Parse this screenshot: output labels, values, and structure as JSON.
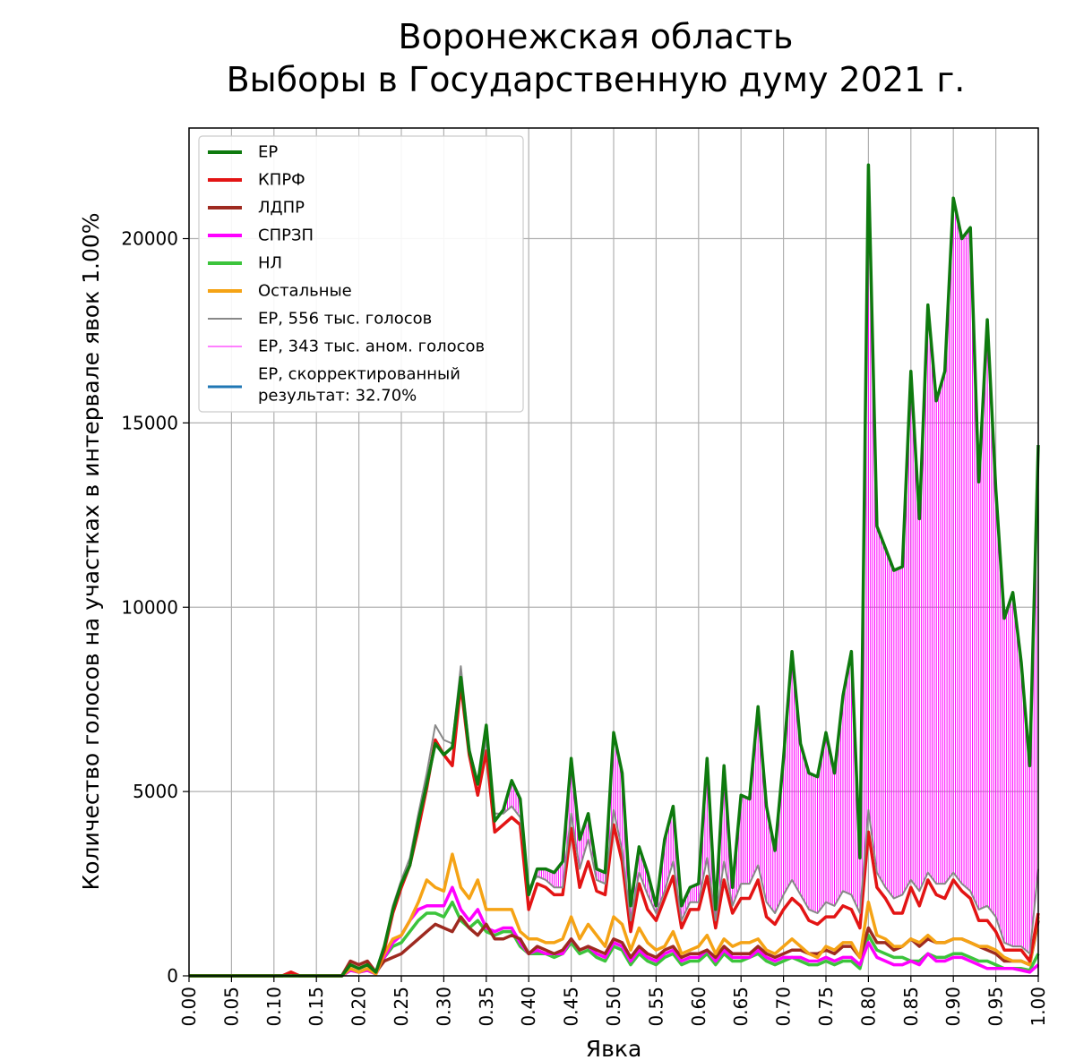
{
  "title_line1": "Воронежская область",
  "title_line2": "Выборы в Государственную думу 2021 г.",
  "chart_data": {
    "type": "line",
    "title": "Воронежская область Выборы в Государственную думу 2021 г.",
    "xlabel": "Явка",
    "ylabel": "Количество голосов на участках в интервале явок 1.00%",
    "xlim": [
      0.0,
      1.0
    ],
    "ylim": [
      0,
      23000
    ],
    "grid": true,
    "legend_position": "top-left",
    "x_ticks": [
      "0.00",
      "0.05",
      "0.10",
      "0.15",
      "0.20",
      "0.25",
      "0.30",
      "0.35",
      "0.40",
      "0.45",
      "0.50",
      "0.55",
      "0.60",
      "0.65",
      "0.70",
      "0.75",
      "0.80",
      "0.85",
      "0.90",
      "0.95",
      "1.00"
    ],
    "y_ticks": [
      "0",
      "5000",
      "10000",
      "15000",
      "20000"
    ],
    "y_tick_values": [
      0,
      5000,
      10000,
      15000,
      20000
    ],
    "x_step": 0.01,
    "legend": [
      {
        "label": "ЕР",
        "color": "#0e7a0e",
        "width": 4
      },
      {
        "label": "КПРФ",
        "color": "#e31414",
        "width": 4
      },
      {
        "label": "ЛДПР",
        "color": "#9e2a20",
        "width": 4
      },
      {
        "label": "СПРЗП",
        "color": "#ff00ff",
        "width": 4
      },
      {
        "label": "НЛ",
        "color": "#3cc43c",
        "width": 4
      },
      {
        "label": "Остальные",
        "color": "#f5a315",
        "width": 4
      },
      {
        "label": "ЕР, 556 тыс. голосов",
        "color": "#888888",
        "width": 2
      },
      {
        "label": "ЕР, 343 тыс. аном. голосов",
        "color": "#ff00ff",
        "width": 1
      },
      {
        "label": "ЕР, скорректированный\nрезультат: 32.70%",
        "color": "#1f77b4",
        "width": 3
      }
    ],
    "series": [
      {
        "name": "ЕР",
        "color": "#0e7a0e",
        "width": 3.5,
        "values": [
          0,
          0,
          0,
          0,
          0,
          0,
          0,
          0,
          0,
          0,
          0,
          0,
          0,
          0,
          0,
          0,
          0,
          0,
          0,
          300,
          200,
          300,
          100,
          800,
          1800,
          2500,
          3000,
          4200,
          5200,
          6300,
          6000,
          6200,
          8100,
          6100,
          5200,
          6800,
          4200,
          4500,
          5300,
          4800,
          2200,
          2900,
          2900,
          2800,
          3100,
          5900,
          3700,
          4400,
          2900,
          2800,
          6600,
          5500,
          1900,
          3500,
          2800,
          1900,
          3700,
          4600,
          1900,
          2400,
          2500,
          5900,
          1800,
          5700,
          2400,
          4900,
          4800,
          7300,
          4600,
          3400,
          5900,
          8800,
          6300,
          5500,
          5400,
          6600,
          5500,
          7600,
          8800,
          3200,
          22000,
          12200,
          11600,
          11000,
          11100,
          16400,
          12400,
          18200,
          15600,
          16400,
          21100,
          20000,
          20300,
          13400,
          17800,
          13200,
          9700,
          10400,
          8500,
          5700,
          14400
        ]
      },
      {
        "name": "ЕР, 556 тыс. голосов",
        "color": "#888888",
        "width": 2,
        "values": [
          0,
          0,
          0,
          0,
          0,
          0,
          0,
          0,
          0,
          0,
          0,
          0,
          0,
          0,
          0,
          0,
          0,
          0,
          0,
          300,
          200,
          300,
          100,
          800,
          1900,
          2600,
          3200,
          4400,
          5500,
          6800,
          6400,
          6300,
          8400,
          6200,
          5200,
          6400,
          4400,
          4400,
          4600,
          4300,
          2400,
          2700,
          2600,
          2400,
          2400,
          4400,
          2900,
          3700,
          2600,
          2500,
          4500,
          3400,
          1500,
          2800,
          2200,
          1700,
          2300,
          3100,
          1500,
          2000,
          2000,
          3200,
          1500,
          3100,
          1900,
          2500,
          2500,
          3000,
          2000,
          1700,
          2200,
          2600,
          2200,
          1800,
          1700,
          2000,
          1900,
          2300,
          2200,
          1700,
          4500,
          2800,
          2400,
          2100,
          2200,
          2600,
          2300,
          2800,
          2500,
          2500,
          2800,
          2500,
          2300,
          1800,
          1900,
          1600,
          900,
          800,
          800,
          600,
          2900
        ]
      },
      {
        "name": "КПРФ",
        "color": "#e31414",
        "width": 3.5,
        "values": [
          0,
          0,
          0,
          0,
          0,
          0,
          0,
          0,
          0,
          0,
          0,
          0,
          100,
          0,
          0,
          0,
          0,
          0,
          0,
          300,
          200,
          300,
          100,
          700,
          1700,
          2400,
          3000,
          4000,
          5100,
          6400,
          6000,
          5700,
          7900,
          6000,
          4900,
          6100,
          3900,
          4100,
          4300,
          4100,
          1800,
          2500,
          2400,
          2200,
          2200,
          4000,
          2400,
          3100,
          2300,
          2200,
          4100,
          3100,
          1200,
          2500,
          1800,
          1500,
          2100,
          2700,
          1300,
          1800,
          1800,
          2700,
          1300,
          2600,
          1700,
          2100,
          2100,
          2600,
          1600,
          1400,
          1800,
          2100,
          1900,
          1500,
          1400,
          1600,
          1600,
          1900,
          1800,
          1300,
          3900,
          2400,
          2100,
          1700,
          1700,
          2400,
          1900,
          2600,
          2200,
          2100,
          2600,
          2300,
          2100,
          1500,
          1500,
          1200,
          700,
          700,
          700,
          400,
          1700
        ]
      },
      {
        "name": "Остальные",
        "color": "#f5a315",
        "width": 3.5,
        "values": [
          0,
          0,
          0,
          0,
          0,
          0,
          0,
          0,
          0,
          0,
          0,
          0,
          0,
          0,
          0,
          0,
          0,
          0,
          0,
          200,
          100,
          200,
          50,
          600,
          1000,
          1100,
          1500,
          2000,
          2600,
          2400,
          2300,
          3300,
          2400,
          2100,
          2600,
          1800,
          1800,
          1800,
          1800,
          1200,
          1000,
          1000,
          900,
          900,
          1000,
          1600,
          1000,
          1400,
          1100,
          800,
          1600,
          1400,
          700,
          1300,
          900,
          700,
          800,
          1200,
          600,
          700,
          800,
          1100,
          600,
          1000,
          800,
          900,
          900,
          1000,
          700,
          600,
          800,
          1000,
          800,
          600,
          500,
          800,
          700,
          900,
          900,
          500,
          2000,
          1100,
          1000,
          800,
          800,
          1000,
          900,
          1100,
          900,
          900,
          1000,
          1000,
          900,
          800,
          800,
          700,
          500,
          400,
          400,
          300,
          1600
        ]
      },
      {
        "name": "ЛДПР",
        "color": "#9e2a20",
        "width": 3.5,
        "values": [
          0,
          0,
          0,
          0,
          0,
          0,
          0,
          0,
          0,
          0,
          0,
          0,
          100,
          0,
          0,
          0,
          0,
          0,
          0,
          400,
          300,
          400,
          100,
          400,
          500,
          600,
          800,
          1000,
          1200,
          1400,
          1300,
          1200,
          1600,
          1300,
          1100,
          1400,
          1000,
          1000,
          1100,
          1000,
          600,
          800,
          700,
          600,
          700,
          1000,
          700,
          800,
          700,
          600,
          1000,
          900,
          500,
          800,
          600,
          500,
          700,
          800,
          500,
          600,
          600,
          700,
          500,
          800,
          600,
          600,
          600,
          800,
          600,
          500,
          600,
          700,
          700,
          600,
          600,
          700,
          600,
          800,
          800,
          500,
          1300,
          900,
          900,
          700,
          800,
          1000,
          800,
          1000,
          900,
          900,
          1000,
          1000,
          900,
          800,
          700,
          600,
          400,
          400,
          400,
          300,
          1500
        ]
      },
      {
        "name": "СПРЗП",
        "color": "#ff00ff",
        "width": 3.5,
        "values": [
          0,
          0,
          0,
          0,
          0,
          0,
          0,
          0,
          0,
          0,
          0,
          0,
          0,
          0,
          0,
          0,
          0,
          0,
          0,
          150,
          100,
          150,
          50,
          500,
          900,
          1100,
          1500,
          1800,
          1900,
          1900,
          1900,
          2400,
          1800,
          1500,
          1800,
          1300,
          1200,
          1300,
          1300,
          900,
          600,
          700,
          600,
          600,
          600,
          1000,
          700,
          800,
          600,
          500,
          900,
          800,
          400,
          700,
          500,
          400,
          600,
          700,
          400,
          500,
          500,
          700,
          400,
          700,
          500,
          500,
          500,
          700,
          500,
          400,
          500,
          500,
          500,
          400,
          400,
          500,
          400,
          500,
          500,
          300,
          900,
          500,
          400,
          300,
          300,
          400,
          300,
          600,
          400,
          400,
          500,
          500,
          400,
          300,
          200,
          200,
          200,
          200,
          150,
          100,
          300
        ]
      },
      {
        "name": "НЛ",
        "color": "#3cc43c",
        "width": 3.5,
        "values": [
          0,
          0,
          0,
          0,
          0,
          0,
          0,
          0,
          0,
          0,
          0,
          0,
          0,
          0,
          0,
          0,
          0,
          0,
          0,
          150,
          100,
          150,
          50,
          500,
          800,
          900,
          1200,
          1500,
          1700,
          1700,
          1600,
          2000,
          1500,
          1300,
          1500,
          1200,
          1100,
          1200,
          1200,
          800,
          600,
          600,
          600,
          500,
          600,
          900,
          600,
          700,
          500,
          400,
          800,
          700,
          300,
          600,
          400,
          300,
          500,
          600,
          300,
          400,
          400,
          600,
          300,
          600,
          400,
          400,
          500,
          600,
          400,
          300,
          400,
          500,
          400,
          300,
          300,
          400,
          300,
          400,
          400,
          200,
          1100,
          700,
          600,
          500,
          500,
          400,
          400,
          600,
          500,
          500,
          600,
          600,
          500,
          400,
          400,
          300,
          200,
          200,
          200,
          150,
          600
        ]
      }
    ]
  }
}
